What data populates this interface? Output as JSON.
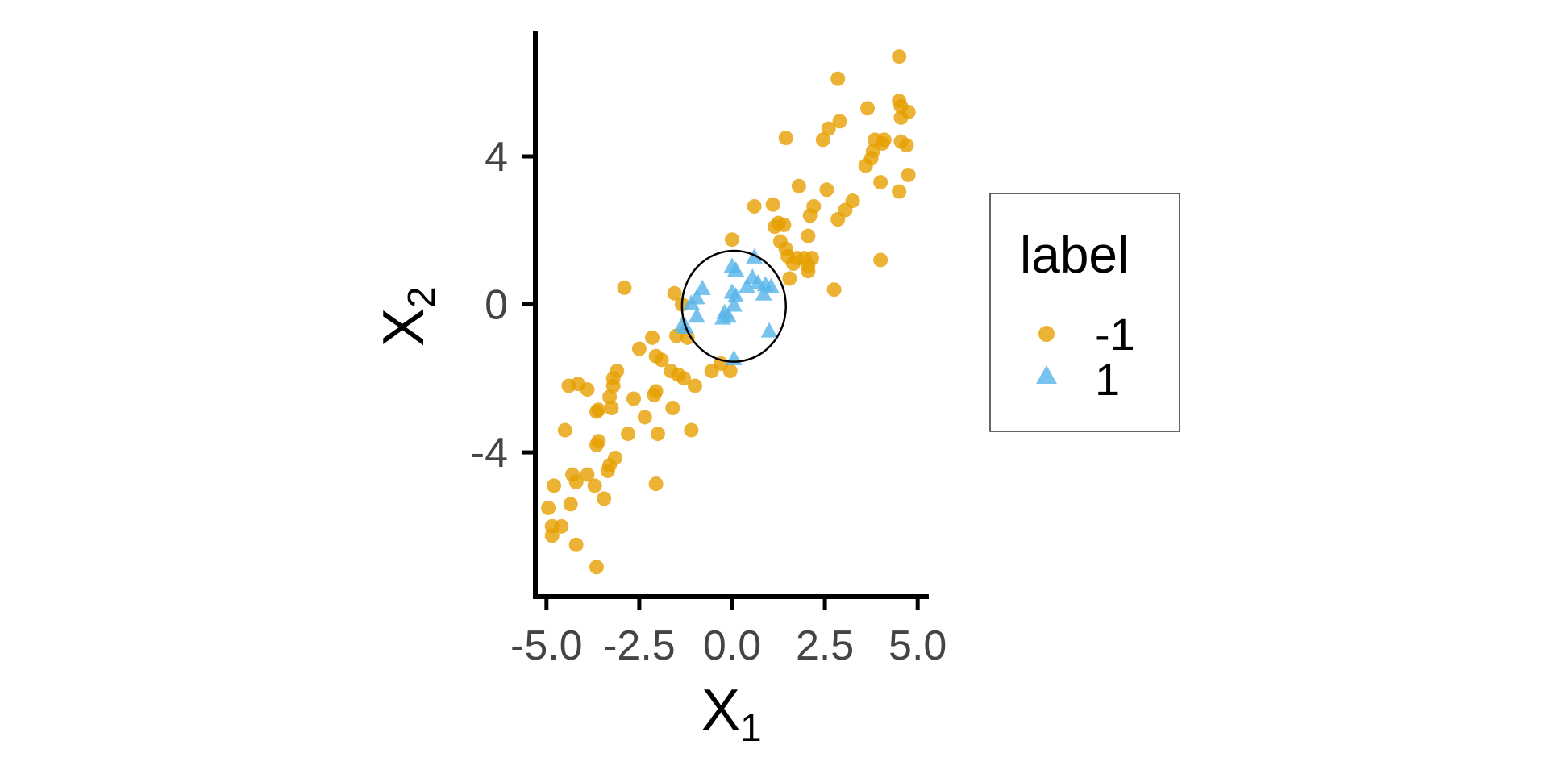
{
  "chart_data": {
    "type": "scatter",
    "xlabel": "X",
    "xlabel_sub": "1",
    "ylabel": "X",
    "ylabel_sub": "2",
    "xlim": [
      -5.3,
      5.3
    ],
    "ylim": [
      -7.9,
      7.4
    ],
    "x_ticks": [
      -5.0,
      -2.5,
      0.0,
      2.5,
      5.0
    ],
    "x_tick_labels": [
      "-5.0",
      "-2.5",
      "0.0",
      "2.5",
      "5.0"
    ],
    "y_ticks": [
      -4,
      0,
      4
    ],
    "y_tick_labels": [
      "-4",
      "0",
      "4"
    ],
    "grid": false,
    "legend": {
      "title": "label",
      "position": "right"
    },
    "series": [
      {
        "name": "-1",
        "marker": "circle",
        "color": "#E69F00",
        "points": [
          [
            4.5,
            6.7
          ],
          [
            2.85,
            6.1
          ],
          [
            4.5,
            5.5
          ],
          [
            4.55,
            5.35
          ],
          [
            4.75,
            5.2
          ],
          [
            4.55,
            5.05
          ],
          [
            2.9,
            4.95
          ],
          [
            2.6,
            4.75
          ],
          [
            3.65,
            5.3
          ],
          [
            1.45,
            4.5
          ],
          [
            2.45,
            4.45
          ],
          [
            3.85,
            4.45
          ],
          [
            4.1,
            4.45
          ],
          [
            4.05,
            4.35
          ],
          [
            4.55,
            4.4
          ],
          [
            4.7,
            4.3
          ],
          [
            3.8,
            4.15
          ],
          [
            3.75,
            3.95
          ],
          [
            3.6,
            3.75
          ],
          [
            4.75,
            3.5
          ],
          [
            4.0,
            3.3
          ],
          [
            4.5,
            3.05
          ],
          [
            1.8,
            3.2
          ],
          [
            2.55,
            3.1
          ],
          [
            3.25,
            2.8
          ],
          [
            3.05,
            2.55
          ],
          [
            2.85,
            2.3
          ],
          [
            0.6,
            2.65
          ],
          [
            1.1,
            2.7
          ],
          [
            2.2,
            2.65
          ],
          [
            2.1,
            2.4
          ],
          [
            1.25,
            2.2
          ],
          [
            1.15,
            2.1
          ],
          [
            1.4,
            2.15
          ],
          [
            2.05,
            1.85
          ],
          [
            1.3,
            1.7
          ],
          [
            0.0,
            1.75
          ],
          [
            1.45,
            1.5
          ],
          [
            1.5,
            1.3
          ],
          [
            1.75,
            1.25
          ],
          [
            1.95,
            1.25
          ],
          [
            2.15,
            1.25
          ],
          [
            1.65,
            1.1
          ],
          [
            2.05,
            1.05
          ],
          [
            2.05,
            0.9
          ],
          [
            1.55,
            0.7
          ],
          [
            2.75,
            0.4
          ],
          [
            4.0,
            1.2
          ],
          [
            -2.9,
            0.45
          ],
          [
            -1.55,
            0.3
          ],
          [
            -1.35,
            0.0
          ],
          [
            -1.5,
            -0.85
          ],
          [
            -1.2,
            -0.9
          ],
          [
            -2.15,
            -0.9
          ],
          [
            -2.5,
            -1.2
          ],
          [
            -2.05,
            -1.4
          ],
          [
            -1.9,
            -1.5
          ],
          [
            -1.65,
            -1.8
          ],
          [
            -1.45,
            -1.9
          ],
          [
            -1.3,
            -2.0
          ],
          [
            -1.0,
            -2.2
          ],
          [
            -0.55,
            -1.8
          ],
          [
            -0.3,
            -1.6
          ],
          [
            -0.05,
            -1.8
          ],
          [
            -3.1,
            -1.8
          ],
          [
            -3.2,
            -2.0
          ],
          [
            -3.2,
            -2.2
          ],
          [
            -4.4,
            -2.2
          ],
          [
            -4.15,
            -2.15
          ],
          [
            -3.9,
            -2.3
          ],
          [
            -3.3,
            -2.5
          ],
          [
            -2.65,
            -2.55
          ],
          [
            -2.05,
            -2.35
          ],
          [
            -2.1,
            -2.45
          ],
          [
            -3.25,
            -2.8
          ],
          [
            -3.6,
            -2.85
          ],
          [
            -3.65,
            -2.9
          ],
          [
            -1.6,
            -2.8
          ],
          [
            -2.35,
            -3.05
          ],
          [
            -4.5,
            -3.4
          ],
          [
            -2.8,
            -3.5
          ],
          [
            -2.0,
            -3.5
          ],
          [
            -1.1,
            -3.4
          ],
          [
            -3.6,
            -3.7
          ],
          [
            -3.65,
            -3.8
          ],
          [
            -3.15,
            -4.15
          ],
          [
            -3.3,
            -4.35
          ],
          [
            -3.35,
            -4.5
          ],
          [
            -4.3,
            -4.6
          ],
          [
            -3.9,
            -4.6
          ],
          [
            -4.2,
            -4.8
          ],
          [
            -4.8,
            -4.9
          ],
          [
            -3.7,
            -4.9
          ],
          [
            -2.05,
            -4.85
          ],
          [
            -3.45,
            -5.25
          ],
          [
            -4.35,
            -5.4
          ],
          [
            -4.95,
            -5.5
          ],
          [
            -4.6,
            -6.0
          ],
          [
            -4.85,
            -6.0
          ],
          [
            -4.85,
            -6.25
          ],
          [
            -4.2,
            -6.5
          ],
          [
            -3.65,
            -7.1
          ]
        ]
      },
      {
        "name": "1",
        "marker": "triangle",
        "color": "#56B4E9",
        "points": [
          [
            0.6,
            1.3
          ],
          [
            0.0,
            1.05
          ],
          [
            0.1,
            0.95
          ],
          [
            0.55,
            0.75
          ],
          [
            0.7,
            0.6
          ],
          [
            0.4,
            0.5
          ],
          [
            0.9,
            0.55
          ],
          [
            1.05,
            0.5
          ],
          [
            0.85,
            0.3
          ],
          [
            0.0,
            0.35
          ],
          [
            0.1,
            0.25
          ],
          [
            -0.8,
            0.45
          ],
          [
            -0.95,
            0.2
          ],
          [
            -1.1,
            0.05
          ],
          [
            0.05,
            0.0
          ],
          [
            -0.2,
            -0.2
          ],
          [
            -0.1,
            -0.3
          ],
          [
            -0.25,
            -0.35
          ],
          [
            -0.95,
            -0.3
          ],
          [
            -1.25,
            -0.6
          ],
          [
            -1.35,
            -0.55
          ],
          [
            1.0,
            -0.7
          ],
          [
            0.05,
            -1.45
          ]
        ]
      }
    ],
    "annotations": [
      {
        "type": "ellipse",
        "center": [
          0.05,
          -0.05
        ],
        "rx": 1.4,
        "ry": 1.5
      }
    ]
  }
}
